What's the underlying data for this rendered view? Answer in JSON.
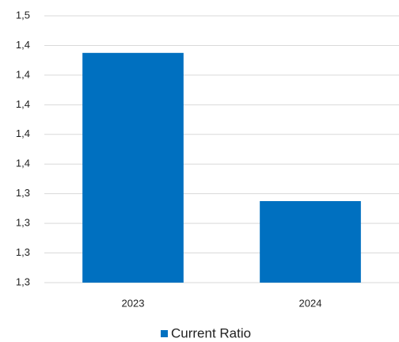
{
  "chart_data": {
    "type": "bar",
    "categories": [
      "2023",
      "2024"
    ],
    "series": [
      {
        "name": "Current Ratio",
        "color": "#0070c0",
        "values": [
          1.425,
          1.325
        ]
      }
    ],
    "ylim": [
      1.27,
      1.45
    ],
    "yticks": [
      {
        "value": 1.27,
        "label": "1,3"
      },
      {
        "value": 1.29,
        "label": "1,3"
      },
      {
        "value": 1.31,
        "label": "1,3"
      },
      {
        "value": 1.33,
        "label": "1,3"
      },
      {
        "value": 1.35,
        "label": "1,4"
      },
      {
        "value": 1.37,
        "label": "1,4"
      },
      {
        "value": 1.39,
        "label": "1,4"
      },
      {
        "value": 1.41,
        "label": "1,4"
      },
      {
        "value": 1.43,
        "label": "1,4"
      },
      {
        "value": 1.45,
        "label": "1,5"
      }
    ],
    "grid": true,
    "legend": "bottom"
  }
}
